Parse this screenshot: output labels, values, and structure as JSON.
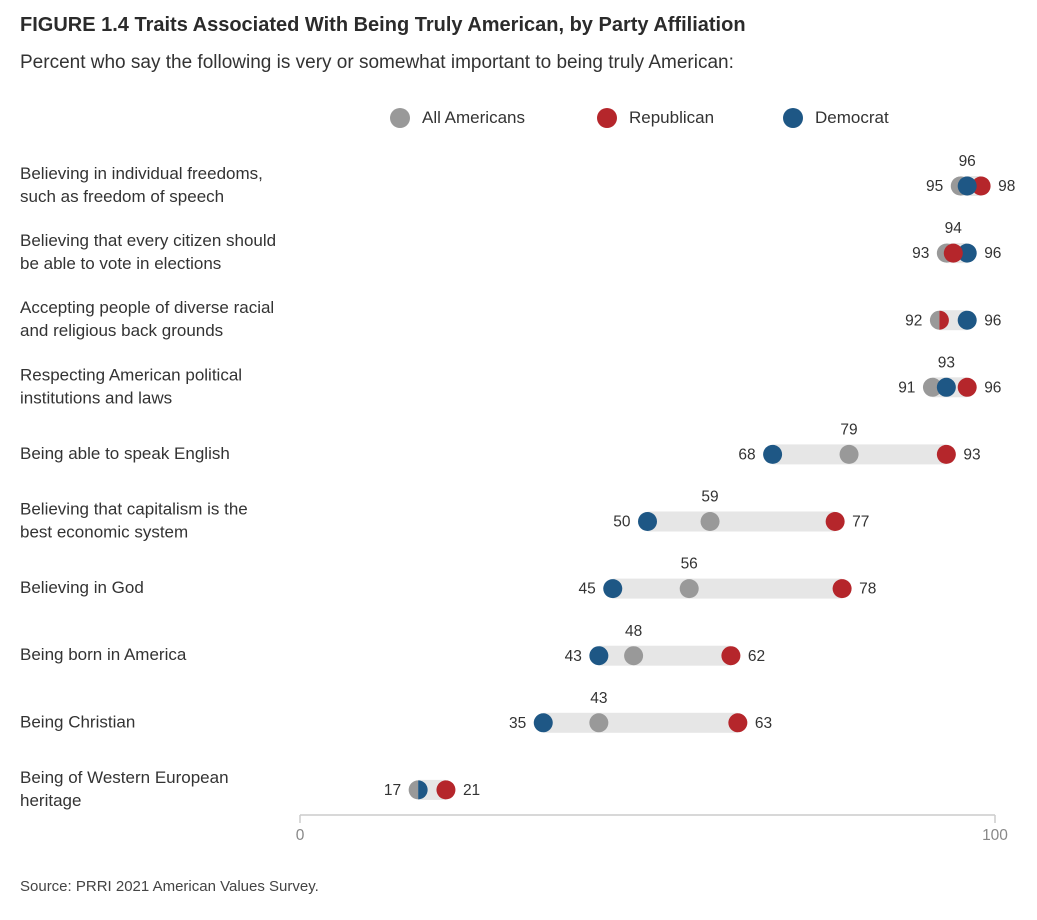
{
  "figure": {
    "title": "FIGURE 1.4  Traits Associated With Being Truly American, by Party Affiliation",
    "subtitle": "Percent who say the following is very or somewhat important to being truly American:",
    "source": "Source: PRRI 2021 American Values Survey."
  },
  "colors": {
    "all": "#999999",
    "republican": "#b5262b",
    "democrat": "#1e5785",
    "range_bar": "#e6e6e6",
    "axis": "#cccccc"
  },
  "chart_data": {
    "type": "dot",
    "title": "FIGURE 1.4  Traits Associated With Being Truly American, by Party Affiliation",
    "xlim": [
      0,
      100
    ],
    "x_ticks": [
      "0",
      "100"
    ],
    "legend_position": "top-center",
    "series": [
      {
        "name": "All Americans",
        "key": "all"
      },
      {
        "name": "Republican",
        "key": "republican"
      },
      {
        "name": "Democrat",
        "key": "democrat"
      }
    ],
    "categories": [
      {
        "label": [
          "Believing in individual freedoms,",
          "such as freedom of speech"
        ],
        "all": 95,
        "republican": 98,
        "democrat": 96
      },
      {
        "label": [
          "Believing that every citizen should",
          "be able to vote in elections"
        ],
        "all": 93,
        "republican": 94,
        "democrat": 96
      },
      {
        "label": [
          "Accepting people of diverse racial",
          "and religious back grounds"
        ],
        "all": 92,
        "republican": 92,
        "democrat": 96
      },
      {
        "label": [
          "Respecting American political",
          "institutions and laws"
        ],
        "all": 91,
        "republican": 96,
        "democrat": 93
      },
      {
        "label": [
          "Being able to speak English"
        ],
        "all": 79,
        "republican": 93,
        "democrat": 68
      },
      {
        "label": [
          "Believing that capitalism is the",
          "best economic system"
        ],
        "all": 59,
        "republican": 77,
        "democrat": 50
      },
      {
        "label": [
          "Believing in God"
        ],
        "all": 56,
        "republican": 78,
        "democrat": 45
      },
      {
        "label": [
          "Being born in America"
        ],
        "all": 48,
        "republican": 62,
        "democrat": 43
      },
      {
        "label": [
          "Being Christian"
        ],
        "all": 43,
        "republican": 63,
        "democrat": 35
      },
      {
        "label": [
          "Being of Western European",
          "heritage"
        ],
        "all": 17,
        "republican": 21,
        "democrat": 17
      }
    ]
  }
}
